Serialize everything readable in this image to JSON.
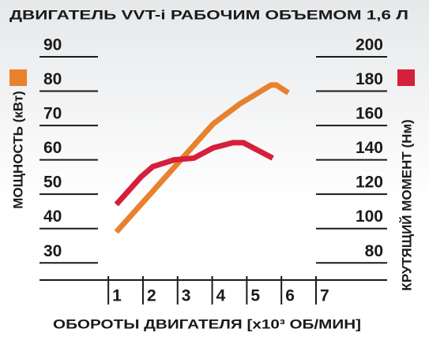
{
  "chart_data": {
    "type": "line",
    "title": "ДВИГАТЕЛЬ VVT-i РАБОЧИМ ОБЪЕМОМ 1,6 Л",
    "x_label": "ОБОРОТЫ ДВИГАТЕЛЯ [x10³ ОБ/МИН]",
    "y_label": "МОЩНОСТЬ (кВт)",
    "y2_label": "КРУТЯЩИЙ МОМЕНТ (Нм)",
    "xlim": [
      0.7,
      7
    ],
    "xticks": [
      1,
      2,
      3,
      4,
      5,
      6,
      7
    ],
    "ylim": [
      25,
      90
    ],
    "yticks": [
      30,
      40,
      50,
      60,
      70,
      80,
      90
    ],
    "y2lim": [
      70,
      200
    ],
    "y2ticks": [
      80,
      100,
      120,
      140,
      160,
      180,
      200
    ],
    "grid": true,
    "series": [
      {
        "color": "#e8812e",
        "x": [
          1.23,
          4.03,
          4.8,
          5.7,
          5.85,
          6.2
        ],
        "values": [
          39,
          70.5,
          76.3,
          81.8,
          81.8,
          79.5
        ]
      },
      {
        "color": "#d61f3a",
        "axis": "y2",
        "x": [
          1.23,
          1.94,
          2.28,
          2.9,
          3.47,
          4.03,
          4.6,
          4.9,
          5.75
        ],
        "values": [
          114,
          130,
          136,
          140,
          141,
          147,
          150,
          150,
          141
        ]
      }
    ]
  }
}
